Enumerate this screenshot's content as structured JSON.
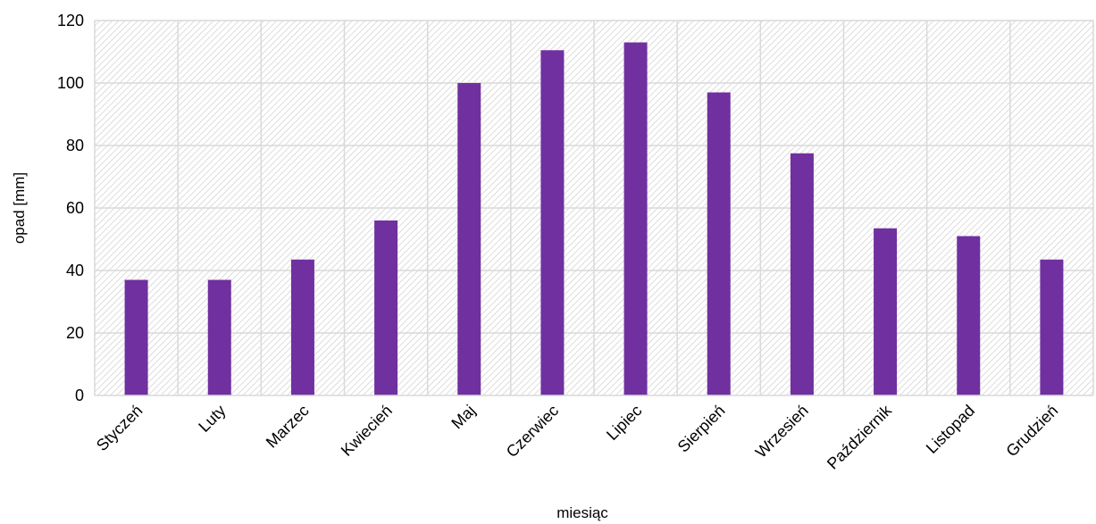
{
  "chart_data": {
    "type": "bar",
    "title": "",
    "xlabel": "miesiąc",
    "ylabel": "opad [mm]",
    "ylim": [
      0,
      120
    ],
    "yticks": [
      0,
      20,
      40,
      60,
      80,
      100,
      120
    ],
    "grid": true,
    "categories": [
      "Styczeń",
      "Luty",
      "Marzec",
      "Kwiecień",
      "Maj",
      "Czerwiec",
      "Lipiec",
      "Sierpień",
      "Wrzesień",
      "Październik",
      "Listopad",
      "Grudzień"
    ],
    "values": [
      37,
      37,
      43.5,
      56,
      100,
      110.5,
      113,
      97,
      77.5,
      53.5,
      51,
      43.5
    ],
    "bar_color": "#7030a0",
    "grid_color": "#d9d9d9",
    "hatch_color": "#d9d9d9"
  }
}
